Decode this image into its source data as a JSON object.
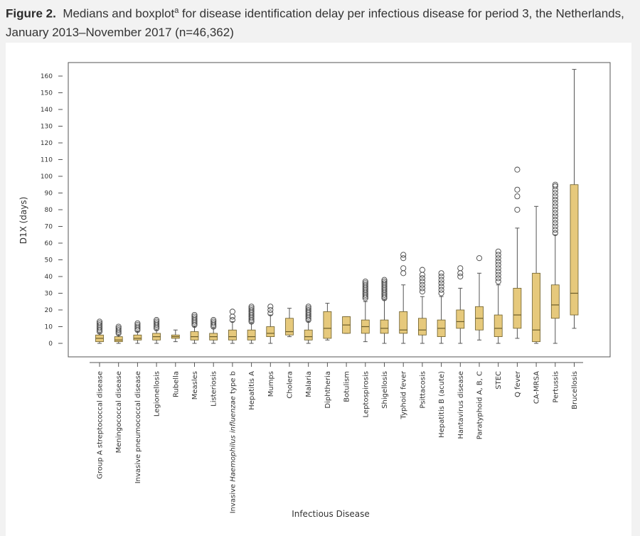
{
  "caption": {
    "label": "Figure 2.",
    "text_before": "Medians and boxplot",
    "superscript": "a",
    "text_after": " for disease identification delay per infectious disease for period 3, the Netherlands, January 2013–November 2017 (n=46,362)"
  },
  "colors": {
    "box_fill": "#e6c97c",
    "box_stroke": "#6b5d2a",
    "line": "#555555",
    "background": "#f2f2f2"
  },
  "chart_data": {
    "type": "box",
    "xlabel": "Infectious Disease",
    "ylabel": "D1X (days)",
    "ylim": [
      -8,
      168
    ],
    "yticks": [
      0,
      10,
      20,
      30,
      40,
      50,
      60,
      70,
      80,
      90,
      100,
      110,
      120,
      130,
      140,
      150,
      160
    ],
    "grid": false,
    "categories": [
      {
        "name": "Group A streptococcal disease",
        "whisker_low": 0,
        "q1": 1,
        "median": 3,
        "q3": 5,
        "whisker_high": 6,
        "outliers": [
          7,
          8,
          9,
          10,
          11,
          12,
          13
        ]
      },
      {
        "name": "Meningococcal disease",
        "whisker_low": 0,
        "q1": 1,
        "median": 2,
        "q3": 4,
        "whisker_high": 5,
        "outliers": [
          6,
          7,
          8,
          9,
          10
        ]
      },
      {
        "name": "Invasive pneumococcal disease",
        "whisker_low": 0,
        "q1": 2,
        "median": 3,
        "q3": 5,
        "whisker_high": 7,
        "outliers": [
          8,
          9,
          10,
          11,
          12
        ]
      },
      {
        "name": "Legionellosis",
        "whisker_low": 0,
        "q1": 2,
        "median": 4,
        "q3": 6,
        "whisker_high": 8,
        "outliers": [
          9,
          10,
          11,
          12,
          13,
          14
        ]
      },
      {
        "name": "Rubella",
        "whisker_low": 1,
        "q1": 3,
        "median": 4,
        "q3": 5,
        "whisker_high": 8,
        "outliers": []
      },
      {
        "name": "Measles",
        "whisker_low": 0,
        "q1": 2,
        "median": 4,
        "q3": 7,
        "whisker_high": 10,
        "outliers": [
          11,
          12,
          13,
          14,
          15,
          16,
          17
        ]
      },
      {
        "name": "Listeriosis",
        "whisker_low": 0,
        "q1": 2,
        "median": 4,
        "q3": 6,
        "whisker_high": 9,
        "outliers": [
          10,
          11,
          12,
          13,
          14
        ]
      },
      {
        "name": "Invasive Haemophilus influenzae type b",
        "whisker_low": 0,
        "q1": 2,
        "median": 4,
        "q3": 8,
        "whisker_high": 13,
        "outliers": [
          14,
          16,
          19
        ]
      },
      {
        "name": "Hepatitis A",
        "whisker_low": 0,
        "q1": 2,
        "median": 4,
        "q3": 8,
        "whisker_high": 12,
        "outliers": [
          13,
          14,
          15,
          16,
          17,
          18,
          19,
          20,
          21,
          22
        ]
      },
      {
        "name": "Mumps",
        "whisker_low": 0,
        "q1": 4,
        "median": 6,
        "q3": 10,
        "whisker_high": 17,
        "outliers": [
          18,
          20,
          22
        ]
      },
      {
        "name": "Cholera",
        "whisker_low": 4,
        "q1": 5,
        "median": 7,
        "q3": 15,
        "whisker_high": 21,
        "outliers": []
      },
      {
        "name": "Malaria",
        "whisker_low": 0,
        "q1": 2,
        "median": 4,
        "q3": 8,
        "whisker_high": 13,
        "outliers": [
          14,
          15,
          16,
          17,
          18,
          19,
          20,
          21,
          22
        ]
      },
      {
        "name": "Diphtheria",
        "whisker_low": 2,
        "q1": 3,
        "median": 9,
        "q3": 19,
        "whisker_high": 24,
        "outliers": []
      },
      {
        "name": "Botulism",
        "whisker_low": 6,
        "q1": 6,
        "median": 11,
        "q3": 16,
        "whisker_high": 16,
        "outliers": []
      },
      {
        "name": "Leptospirosis",
        "whisker_low": 1,
        "q1": 6,
        "median": 10,
        "q3": 14,
        "whisker_high": 25,
        "outliers": [
          27,
          28,
          29,
          30,
          31,
          32,
          33,
          34,
          35,
          36,
          37
        ]
      },
      {
        "name": "Shigellosis",
        "whisker_low": 0,
        "q1": 6,
        "median": 9,
        "q3": 14,
        "whisker_high": 26,
        "outliers": [
          27,
          28,
          29,
          30,
          31,
          32,
          33,
          34,
          35,
          36,
          37,
          38
        ]
      },
      {
        "name": "Typhoid fever",
        "whisker_low": 0,
        "q1": 6,
        "median": 8,
        "q3": 19,
        "whisker_high": 35,
        "outliers": [
          42,
          45,
          51,
          53
        ]
      },
      {
        "name": "Psittacosis",
        "whisker_low": 0,
        "q1": 5,
        "median": 8,
        "q3": 15,
        "whisker_high": 28,
        "outliers": [
          31,
          33,
          35,
          37,
          39,
          41,
          44
        ]
      },
      {
        "name": "Hepatitis B (acute)",
        "whisker_low": 0,
        "q1": 4,
        "median": 9,
        "q3": 14,
        "whisker_high": 28,
        "outliers": [
          30,
          32,
          34,
          36,
          38,
          40,
          42
        ]
      },
      {
        "name": "Hantavirus disease",
        "whisker_low": 0,
        "q1": 9,
        "median": 13,
        "q3": 20,
        "whisker_high": 33,
        "outliers": [
          40,
          42,
          45
        ]
      },
      {
        "name": "Paratyphoid A, B, C",
        "whisker_low": 2,
        "q1": 8,
        "median": 15,
        "q3": 22,
        "whisker_high": 42,
        "outliers": [
          51
        ]
      },
      {
        "name": "STEC",
        "whisker_low": 0,
        "q1": 4,
        "median": 9,
        "q3": 17,
        "whisker_high": 35,
        "outliers": [
          37,
          39,
          41,
          43,
          45,
          47,
          49,
          51,
          53,
          55
        ]
      },
      {
        "name": "Q fever",
        "whisker_low": 3,
        "q1": 9,
        "median": 17,
        "q3": 33,
        "whisker_high": 69,
        "outliers": [
          80,
          88,
          92,
          104
        ]
      },
      {
        "name": "CA-MRSA",
        "whisker_low": 0,
        "q1": 1,
        "median": 8,
        "q3": 42,
        "whisker_high": 82,
        "outliers": []
      },
      {
        "name": "Pertussis",
        "whisker_low": 0,
        "q1": 15,
        "median": 23,
        "q3": 35,
        "whisker_high": 65,
        "outliers": [
          66,
          68,
          70,
          72,
          74,
          76,
          78,
          80,
          82,
          84,
          86,
          88,
          90,
          92,
          94,
          95
        ]
      },
      {
        "name": "Brucellosis",
        "whisker_low": 9,
        "q1": 17,
        "median": 30,
        "q3": 95,
        "whisker_high": 164,
        "outliers": []
      }
    ]
  }
}
